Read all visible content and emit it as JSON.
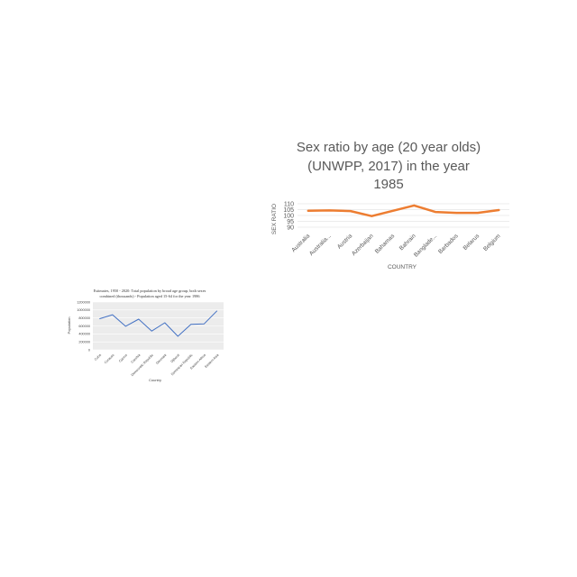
{
  "chart_data": [
    {
      "type": "line",
      "title_lines": [
        "Sex ratio by age (20 year olds)",
        "(UNWPP, 2017) in the year",
        "1985"
      ],
      "xlabel": "COUNTRY",
      "ylabel": "SEX RATIO",
      "categories": [
        "Australia",
        "Australia...",
        "Austria",
        "Azerbaijan",
        "Bahamas",
        "Bahrain",
        "Banglade...",
        "Barbados",
        "Belarus",
        "Belgium"
      ],
      "series": [
        {
          "values": [
            104,
            104.3,
            103.8,
            99.5,
            104,
            108.5,
            103,
            102.2,
            102.2,
            104.6
          ],
          "color": "#ED7D31"
        }
      ],
      "yticks": [
        "110",
        "105",
        "100",
        "95",
        "90"
      ],
      "ylim": [
        90,
        110
      ],
      "grid": true
    },
    {
      "type": "line",
      "title_lines": [
        "Estimates, 1950 - 2020: Total population by broad age group, both sexes",
        "combined (thousands) - Population aged 15-64 for the year 1986"
      ],
      "xlabel": "Country",
      "ylabel": "Population",
      "categories": [
        "Cuba",
        "Curacao",
        "Cyprus",
        "Czechia",
        "Democratic Republic",
        "Denmark",
        "Djibouti",
        "Dominican Republic",
        "Eastern Africa",
        "Eastern Asia"
      ],
      "series": [
        {
          "values": [
            780000,
            880000,
            590000,
            770000,
            470000,
            680000,
            340000,
            640000,
            650000,
            980000
          ],
          "color": "#4472C4"
        }
      ],
      "yticks": [
        "1200000",
        "1000000",
        "800000",
        "600000",
        "400000",
        "200000",
        "0"
      ],
      "ylim": [
        0,
        1200000
      ],
      "grid": true
    }
  ]
}
